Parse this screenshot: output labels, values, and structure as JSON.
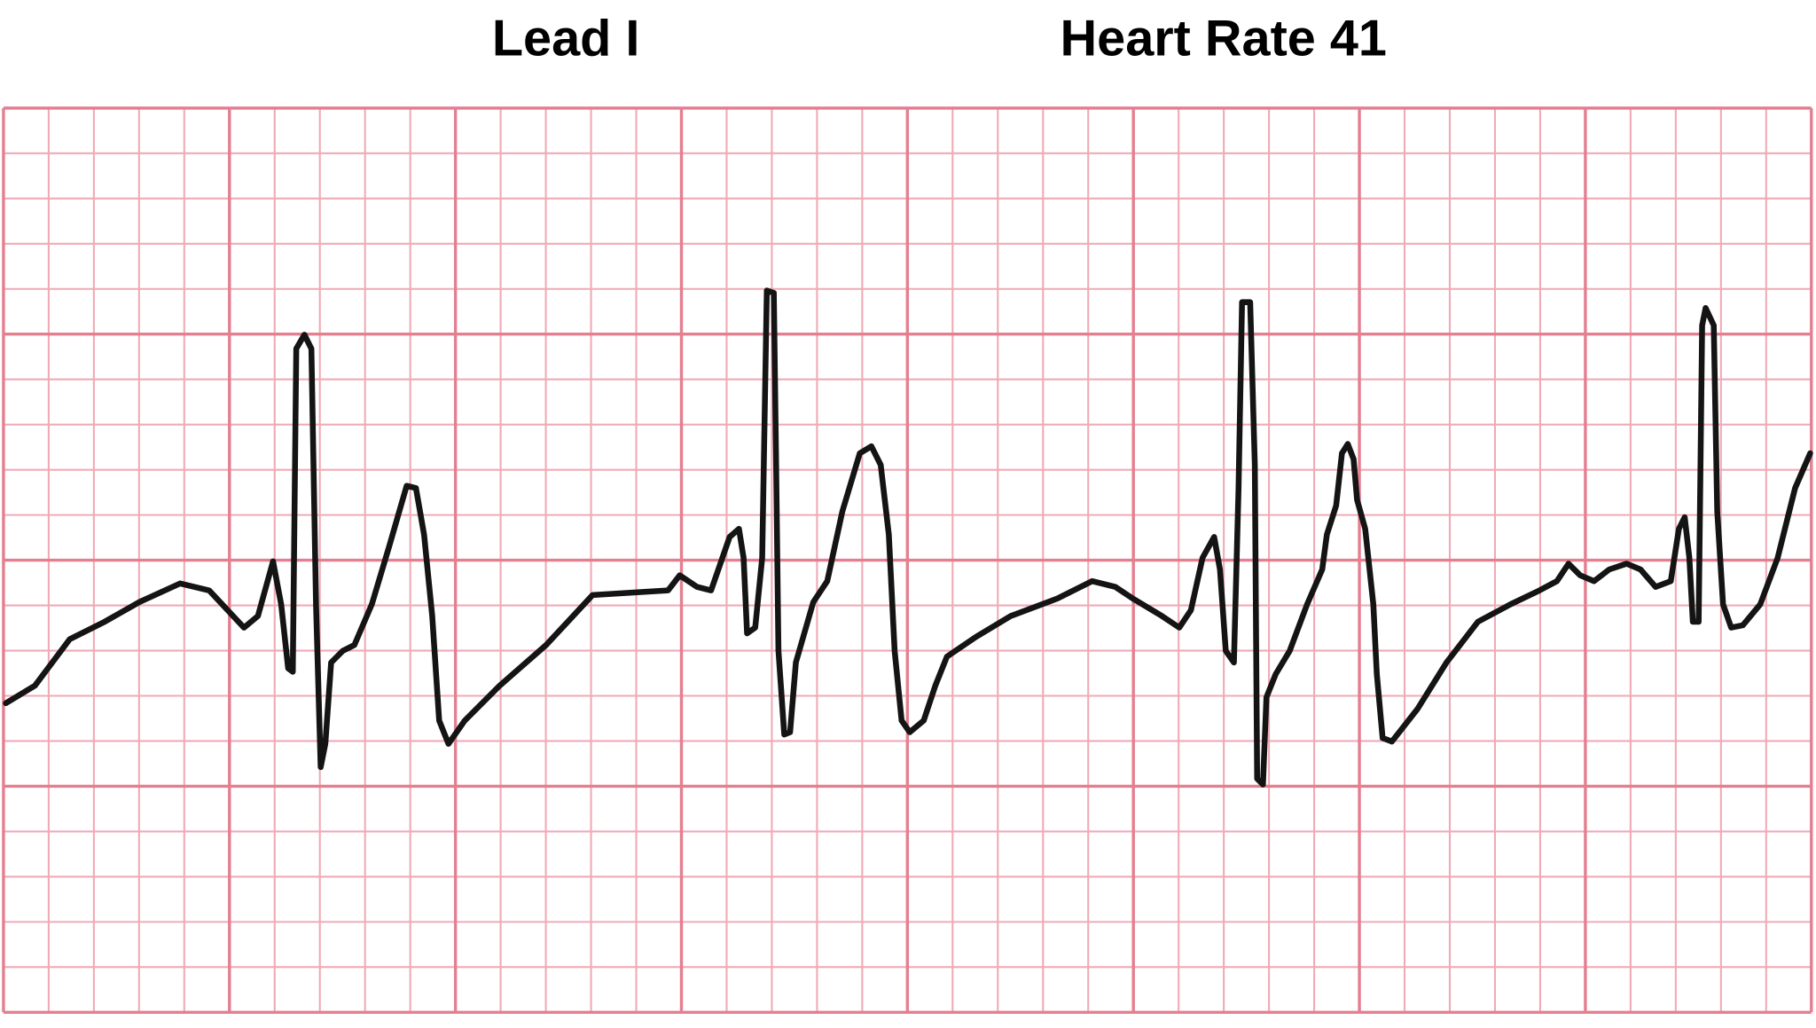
{
  "header": {
    "lead": "Lead I",
    "heart_rate": "Heart Rate 41"
  }
}
